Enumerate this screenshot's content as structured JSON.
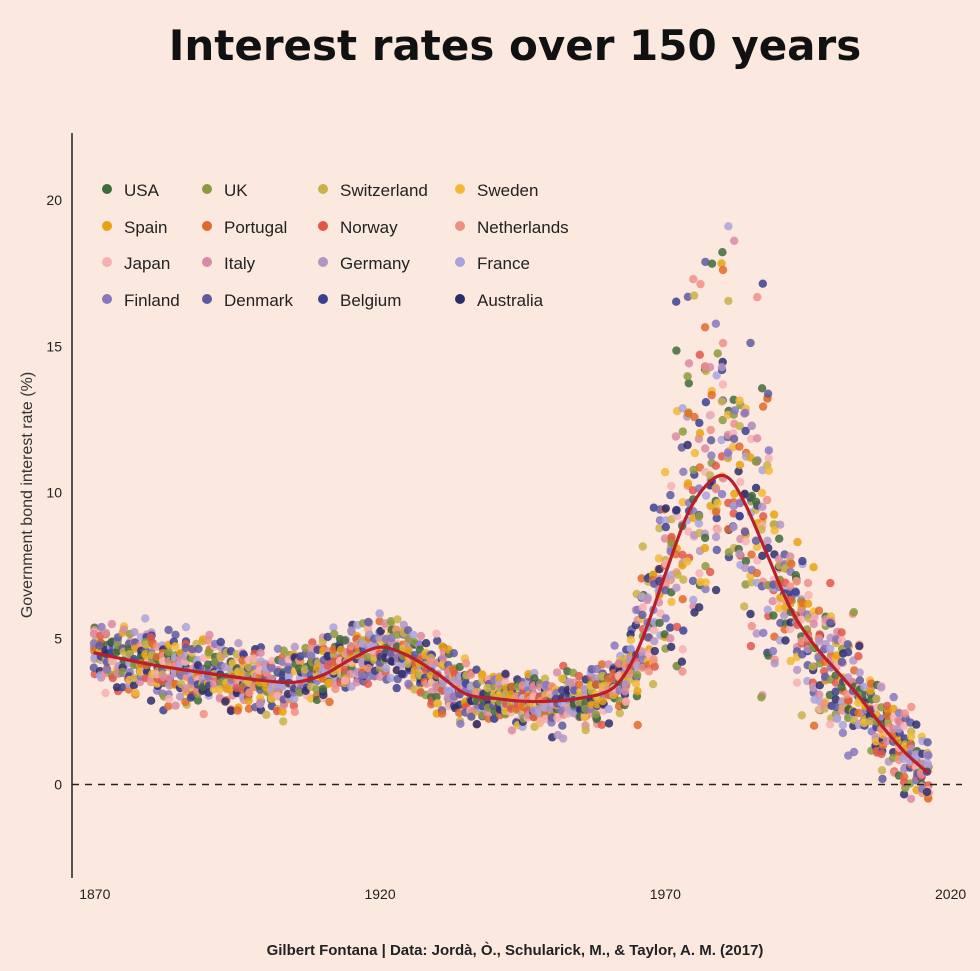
{
  "chart_data": {
    "type": "scatter",
    "title": "Interest rates over 150 years",
    "ylabel": "Government bond interest rate (%)",
    "xlabel": "",
    "caption": "Gilbert Fontana | Data: Jordà, Ò., Schularick, M., & Taylor, A. M. (2017)",
    "xlim": [
      1866,
      2022
    ],
    "ylim": [
      -3.2,
      22.3
    ],
    "x_ticks": [
      1870,
      1920,
      1970,
      2020
    ],
    "y_ticks": [
      0,
      5,
      10,
      15,
      20
    ],
    "zero_line": "dashed",
    "grid": false,
    "legend_position": "top-left",
    "series": [
      {
        "name": "USA",
        "color": "#3f6b3a"
      },
      {
        "name": "UK",
        "color": "#8c9a3e"
      },
      {
        "name": "Switzerland",
        "color": "#c8b24a"
      },
      {
        "name": "Sweden",
        "color": "#f2b935"
      },
      {
        "name": "Spain",
        "color": "#e8a20f"
      },
      {
        "name": "Portugal",
        "color": "#e06a2a"
      },
      {
        "name": "Norway",
        "color": "#e0574a"
      },
      {
        "name": "Netherlands",
        "color": "#ee8f85"
      },
      {
        "name": "Japan",
        "color": "#f6b0b3"
      },
      {
        "name": "Italy",
        "color": "#d98aa5"
      },
      {
        "name": "Germany",
        "color": "#b395c4"
      },
      {
        "name": "France",
        "color": "#a8a3dd"
      },
      {
        "name": "Finland",
        "color": "#8677bf"
      },
      {
        "name": "Denmark",
        "color": "#5d5aa0"
      },
      {
        "name": "Belgium",
        "color": "#3b3f8f"
      },
      {
        "name": "Australia",
        "color": "#2b2d6b"
      }
    ],
    "trend": {
      "color": "#b81f2b",
      "x": [
        1870,
        1880,
        1890,
        1900,
        1905,
        1910,
        1915,
        1920,
        1925,
        1930,
        1935,
        1940,
        1945,
        1950,
        1955,
        1960,
        1963,
        1966,
        1970,
        1974,
        1978,
        1981,
        1984,
        1988,
        1992,
        1996,
        2000,
        2004,
        2008,
        2012,
        2016
      ],
      "y": [
        4.5,
        4.1,
        3.8,
        3.55,
        3.5,
        3.75,
        4.3,
        4.7,
        4.4,
        3.8,
        3.1,
        2.95,
        2.85,
        2.85,
        2.95,
        3.2,
        3.8,
        5.0,
        7.2,
        9.3,
        10.4,
        10.5,
        9.6,
        7.8,
        6.0,
        4.8,
        3.9,
        3.0,
        2.0,
        1.1,
        0.4
      ]
    }
  }
}
